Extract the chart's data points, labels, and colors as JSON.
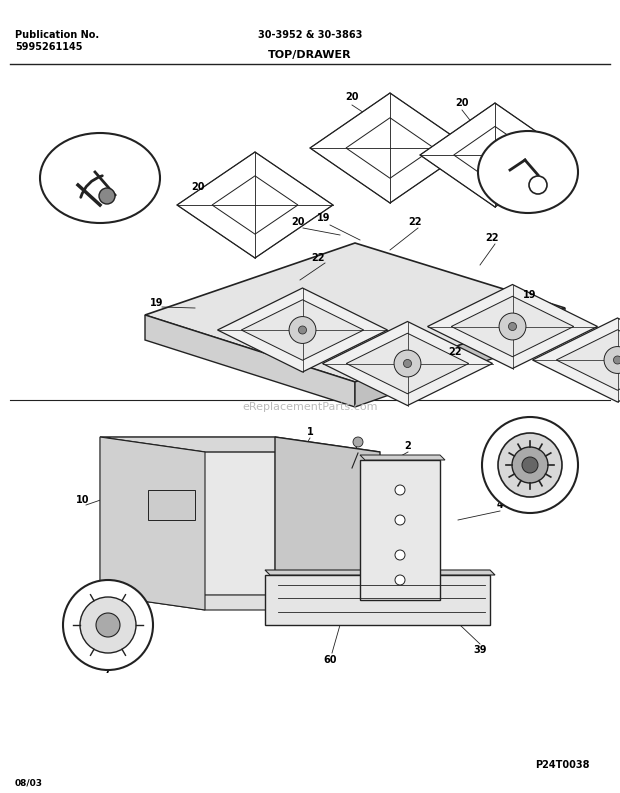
{
  "bg_color": "#ffffff",
  "title_center": "30-3952 & 30-3863",
  "title_section": "TOP/DRAWER",
  "pub_no_line1": "Publication No.",
  "pub_no_line2": "5995261145",
  "date_code": "08/03",
  "watermark": "eReplacementParts.com",
  "model_code": "P24T0038",
  "line_color": "#222222",
  "font_sizes": {
    "header": 7,
    "section_title": 8,
    "part_label": 7,
    "watermark": 8,
    "date": 6.5
  }
}
